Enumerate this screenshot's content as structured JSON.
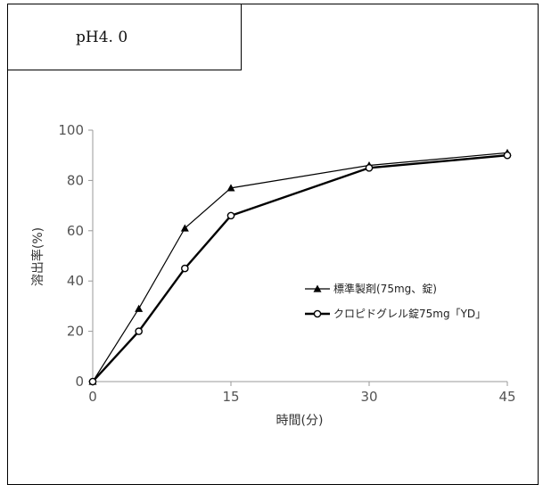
{
  "panel": {
    "condition_label": "pH4. 0"
  },
  "chart_data": {
    "type": "line",
    "xlabel": "時間(分)",
    "ylabel": "溶出率(%)",
    "x": [
      0,
      5,
      10,
      15,
      30,
      45
    ],
    "xticks": [
      0,
      15,
      30,
      45
    ],
    "yticks": [
      0,
      20,
      40,
      60,
      80,
      100
    ],
    "xlim": [
      0,
      45
    ],
    "ylim": [
      0,
      100
    ],
    "grid": false,
    "legend_position": "right-middle",
    "series": [
      {
        "name": "標準製剤(75mg、錠)",
        "marker": "filled-triangle",
        "values": [
          0,
          29,
          61,
          77,
          86,
          91
        ],
        "color": "#000000"
      },
      {
        "name": "クロピドグレル錠75mg「YD」",
        "marker": "open-circle",
        "values": [
          0,
          20,
          45,
          66,
          85,
          90
        ],
        "color": "#000000"
      }
    ]
  }
}
